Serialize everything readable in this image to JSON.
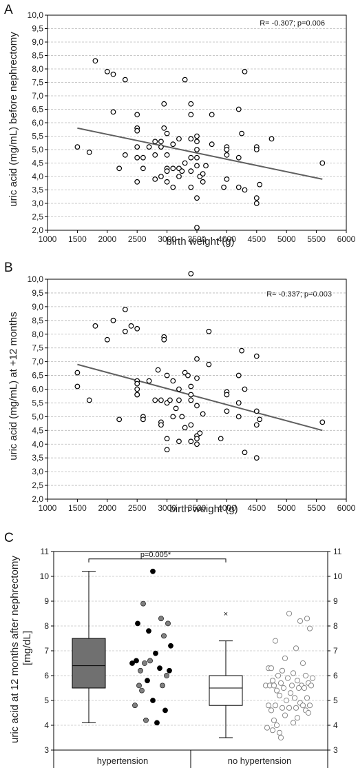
{
  "chart_data": [
    {
      "type": "scatter",
      "panel_label": "A",
      "xlabel": "birth weight (g)",
      "ylabel": "uric acid (mg/mL) before nephrectomy",
      "xlim": [
        1000,
        6000
      ],
      "ylim": [
        2.0,
        10.0
      ],
      "x_ticks": [
        1000,
        1500,
        2000,
        2500,
        3000,
        3500,
        4000,
        4500,
        5000,
        5500,
        6000
      ],
      "y_ticks": [
        "2,0",
        "2,5",
        "3,0",
        "3,5",
        "4,0",
        "4,5",
        "5,0",
        "5,5",
        "6,0",
        "6,5",
        "7,0",
        "7,5",
        "8,0",
        "8,5",
        "9,0",
        "9,5",
        "10,0"
      ],
      "grid": "horizontal dashed",
      "annotation": "R= -0.307; p=0.006",
      "trendline": {
        "x": [
          1500,
          5600
        ],
        "y": [
          5.8,
          3.9
        ]
      },
      "points": [
        [
          1500,
          5.1
        ],
        [
          1700,
          4.9
        ],
        [
          1800,
          8.3
        ],
        [
          2000,
          7.9
        ],
        [
          2100,
          7.8
        ],
        [
          2100,
          6.4
        ],
        [
          2200,
          4.3
        ],
        [
          2300,
          7.6
        ],
        [
          2300,
          4.8
        ],
        [
          2500,
          6.3
        ],
        [
          2500,
          5.8
        ],
        [
          2500,
          5.7
        ],
        [
          2500,
          5.1
        ],
        [
          2500,
          4.7
        ],
        [
          2500,
          3.8
        ],
        [
          2600,
          4.7
        ],
        [
          2600,
          4.3
        ],
        [
          2700,
          5.1
        ],
        [
          2800,
          5.3
        ],
        [
          2800,
          4.8
        ],
        [
          2800,
          3.9
        ],
        [
          2900,
          5.3
        ],
        [
          2900,
          5.1
        ],
        [
          2900,
          4.0
        ],
        [
          2950,
          6.7
        ],
        [
          2950,
          5.8
        ],
        [
          3000,
          5.6
        ],
        [
          3000,
          4.8
        ],
        [
          3000,
          4.3
        ],
        [
          3000,
          4.2
        ],
        [
          3000,
          3.8
        ],
        [
          3100,
          5.2
        ],
        [
          3100,
          4.3
        ],
        [
          3100,
          3.6
        ],
        [
          3200,
          5.4
        ],
        [
          3200,
          4.3
        ],
        [
          3200,
          4.0
        ],
        [
          3250,
          4.2
        ],
        [
          3300,
          7.6
        ],
        [
          3300,
          4.5
        ],
        [
          3400,
          6.7
        ],
        [
          3400,
          6.3
        ],
        [
          3400,
          5.4
        ],
        [
          3400,
          4.7
        ],
        [
          3400,
          4.2
        ],
        [
          3400,
          3.6
        ],
        [
          3500,
          5.5
        ],
        [
          3500,
          5.3
        ],
        [
          3500,
          5.0
        ],
        [
          3500,
          4.7
        ],
        [
          3500,
          4.4
        ],
        [
          3500,
          3.2
        ],
        [
          3500,
          2.1
        ],
        [
          3550,
          4.0
        ],
        [
          3600,
          4.1
        ],
        [
          3600,
          3.8
        ],
        [
          3650,
          4.4
        ],
        [
          3750,
          6.3
        ],
        [
          3750,
          5.2
        ],
        [
          3950,
          3.6
        ],
        [
          4000,
          5.1
        ],
        [
          4000,
          5.0
        ],
        [
          4000,
          4.8
        ],
        [
          4000,
          3.9
        ],
        [
          4200,
          6.5
        ],
        [
          4200,
          4.7
        ],
        [
          4200,
          3.6
        ],
        [
          4250,
          5.6
        ],
        [
          4300,
          7.9
        ],
        [
          4300,
          3.5
        ],
        [
          4500,
          5.1
        ],
        [
          4500,
          5.0
        ],
        [
          4500,
          3.2
        ],
        [
          4500,
          3.0
        ],
        [
          4550,
          3.7
        ],
        [
          4750,
          5.4
        ],
        [
          5600,
          4.5
        ]
      ]
    },
    {
      "type": "scatter",
      "panel_label": "B",
      "xlabel": "birth weight (g)",
      "ylabel": "uric acid (mg/mL) at +12 months",
      "xlim": [
        1000,
        6000
      ],
      "ylim": [
        2.0,
        10.0
      ],
      "x_ticks": [
        1000,
        1500,
        2000,
        2500,
        3000,
        3500,
        4000,
        4500,
        5000,
        5500,
        6000
      ],
      "y_ticks": [
        "2,0",
        "2,5",
        "3,0",
        "3,5",
        "4,0",
        "4,5",
        "5,0",
        "5,5",
        "6,0",
        "6,5",
        "7,0",
        "7,5",
        "8,0",
        "8,5",
        "9,0",
        "9,5",
        "10,0"
      ],
      "grid": "horizontal dashed",
      "annotation": "R= -0.337; p=0.003",
      "trendline": {
        "x": [
          1500,
          5600
        ],
        "y": [
          6.9,
          4.5
        ]
      },
      "points": [
        [
          1500,
          6.6
        ],
        [
          1500,
          6.1
        ],
        [
          1700,
          5.6
        ],
        [
          1800,
          8.3
        ],
        [
          2000,
          7.8
        ],
        [
          2100,
          8.5
        ],
        [
          2200,
          4.9
        ],
        [
          2300,
          8.9
        ],
        [
          2300,
          8.1
        ],
        [
          2400,
          8.3
        ],
        [
          2500,
          8.2
        ],
        [
          2500,
          6.3
        ],
        [
          2500,
          6.2
        ],
        [
          2500,
          6.0
        ],
        [
          2500,
          5.8
        ],
        [
          2500,
          5.8
        ],
        [
          2600,
          5.0
        ],
        [
          2600,
          4.9
        ],
        [
          2700,
          6.3
        ],
        [
          2800,
          5.6
        ],
        [
          2850,
          6.7
        ],
        [
          2900,
          5.6
        ],
        [
          2900,
          4.8
        ],
        [
          2900,
          4.7
        ],
        [
          2950,
          7.9
        ],
        [
          2950,
          7.8
        ],
        [
          3000,
          6.5
        ],
        [
          3000,
          5.5
        ],
        [
          3000,
          4.2
        ],
        [
          3000,
          3.8
        ],
        [
          3050,
          5.6
        ],
        [
          3100,
          6.3
        ],
        [
          3100,
          5.0
        ],
        [
          3150,
          5.3
        ],
        [
          3200,
          6.0
        ],
        [
          3200,
          5.6
        ],
        [
          3200,
          4.1
        ],
        [
          3250,
          5.0
        ],
        [
          3300,
          6.6
        ],
        [
          3300,
          4.6
        ],
        [
          3350,
          6.5
        ],
        [
          3400,
          10.2
        ],
        [
          3400,
          6.1
        ],
        [
          3400,
          5.8
        ],
        [
          3400,
          5.6
        ],
        [
          3400,
          4.7
        ],
        [
          3400,
          4.1
        ],
        [
          3500,
          7.1
        ],
        [
          3500,
          6.4
        ],
        [
          3500,
          5.4
        ],
        [
          3500,
          4.3
        ],
        [
          3500,
          4.2
        ],
        [
          3500,
          4.0
        ],
        [
          3550,
          4.4
        ],
        [
          3600,
          5.1
        ],
        [
          3700,
          8.1
        ],
        [
          3700,
          6.9
        ],
        [
          3900,
          4.2
        ],
        [
          4000,
          5.9
        ],
        [
          4000,
          5.8
        ],
        [
          4000,
          5.2
        ],
        [
          4200,
          6.5
        ],
        [
          4200,
          5.5
        ],
        [
          4200,
          5.0
        ],
        [
          4250,
          7.4
        ],
        [
          4300,
          6.0
        ],
        [
          4300,
          3.7
        ],
        [
          4500,
          7.2
        ],
        [
          4500,
          5.2
        ],
        [
          4500,
          4.7
        ],
        [
          4500,
          3.5
        ],
        [
          4550,
          4.9
        ],
        [
          5600,
          4.8
        ]
      ]
    },
    {
      "type": "box",
      "panel_label": "C",
      "ylabel": "uric acid at 12 months after nephrectomy [mg/dL]",
      "ylim": [
        3,
        11
      ],
      "y_ticks": [
        3,
        4,
        5,
        6,
        7,
        8,
        9,
        10,
        11
      ],
      "grid": "horizontal dashed",
      "categories": [
        "hypertension",
        "no hypertension"
      ],
      "significance": "p=0.005*",
      "boxes": [
        {
          "category": "hypertension",
          "fill": "#707070",
          "whisker_low": 4.1,
          "q1": 5.5,
          "median": 6.4,
          "q3": 7.5,
          "whisker_high": 10.2
        },
        {
          "category": "no hypertension",
          "fill": "#ffffff",
          "whisker_low": 3.5,
          "q1": 4.8,
          "median": 5.5,
          "q3": 6.0,
          "whisker_high": 7.4,
          "outliers": [
            8.5
          ]
        }
      ],
      "hypertension_points": [
        {
          "y": 10.2,
          "color": "#000000"
        },
        {
          "y": 8.9,
          "color": "#808080"
        },
        {
          "y": 8.3,
          "color": "#808080"
        },
        {
          "y": 8.1,
          "color": "#000000"
        },
        {
          "y": 8.1,
          "color": "#808080"
        },
        {
          "y": 7.8,
          "color": "#000000"
        },
        {
          "y": 7.6,
          "color": "#808080"
        },
        {
          "y": 7.2,
          "color": "#000000"
        },
        {
          "y": 6.9,
          "color": "#000000"
        },
        {
          "y": 6.6,
          "color": "#000000"
        },
        {
          "y": 6.6,
          "color": "#808080"
        },
        {
          "y": 6.5,
          "color": "#000000"
        },
        {
          "y": 6.5,
          "color": "#808080"
        },
        {
          "y": 6.3,
          "color": "#000000"
        },
        {
          "y": 6.2,
          "color": "#000000"
        },
        {
          "y": 6.2,
          "color": "#808080"
        },
        {
          "y": 6.0,
          "color": "#808080"
        },
        {
          "y": 5.8,
          "color": "#000000"
        },
        {
          "y": 5.6,
          "color": "#808080"
        },
        {
          "y": 5.6,
          "color": "#808080"
        },
        {
          "y": 5.4,
          "color": "#808080"
        },
        {
          "y": 5.0,
          "color": "#000000"
        },
        {
          "y": 4.8,
          "color": "#808080"
        },
        {
          "y": 4.6,
          "color": "#000000"
        },
        {
          "y": 4.2,
          "color": "#808080"
        },
        {
          "y": 4.1,
          "color": "#000000"
        }
      ],
      "no_hypertension_points": [
        8.5,
        8.3,
        8.2,
        7.9,
        7.4,
        7.1,
        6.7,
        6.5,
        6.3,
        6.3,
        6.2,
        6.1,
        6.0,
        6.0,
        5.9,
        5.9,
        5.8,
        5.8,
        5.7,
        5.7,
        5.6,
        5.6,
        5.6,
        5.6,
        5.6,
        5.6,
        5.5,
        5.5,
        5.5,
        5.4,
        5.3,
        5.2,
        5.1,
        5.1,
        5.0,
        4.9,
        4.8,
        4.8,
        4.8,
        4.8,
        4.7,
        4.7,
        4.7,
        4.6,
        4.6,
        4.5,
        4.4,
        4.3,
        4.2,
        4.1,
        4.0,
        3.9,
        3.8,
        3.7,
        3.5
      ]
    }
  ]
}
